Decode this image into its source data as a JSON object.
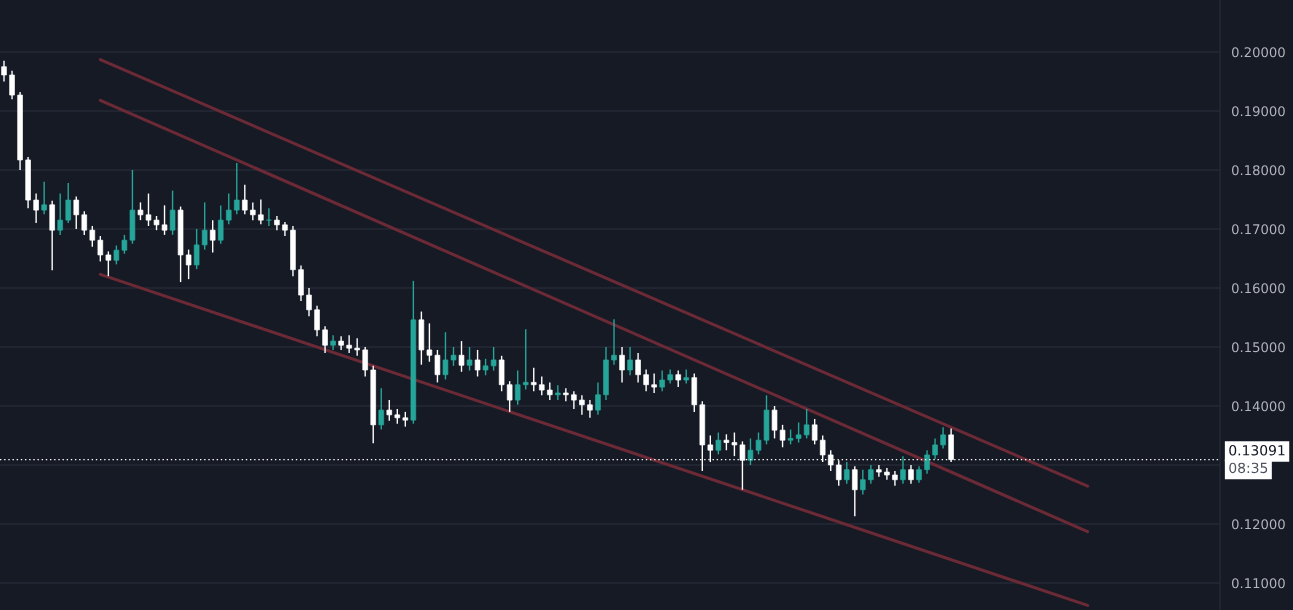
{
  "chart_data": {
    "type": "candlestick",
    "categories": [
      null,
      null,
      null,
      null,
      null,
      null,
      null,
      null,
      null,
      null,
      null,
      null,
      null,
      null,
      null,
      null,
      null,
      null,
      null,
      null,
      null,
      null,
      null,
      null,
      null,
      null,
      null,
      null,
      null,
      null,
      null,
      null,
      null,
      null,
      null,
      null,
      null,
      null,
      null,
      null,
      null,
      null,
      null,
      null,
      null,
      null,
      null,
      null,
      null,
      null,
      null,
      null,
      null,
      null,
      null,
      null,
      null,
      null,
      null,
      null,
      null,
      null,
      null,
      null,
      null,
      null,
      null,
      null,
      null,
      null,
      null,
      null,
      null,
      null,
      null,
      null,
      null,
      null,
      null,
      null,
      null,
      null,
      null,
      null,
      null,
      null,
      null,
      null,
      null,
      null,
      null,
      null,
      null,
      null,
      null,
      null,
      null,
      null,
      null,
      null,
      null,
      null,
      null,
      null,
      null,
      null,
      null,
      null,
      null,
      null,
      null,
      null,
      null,
      null,
      null,
      null,
      null,
      null,
      null,
      null,
      null,
      null,
      null,
      null,
      null,
      null,
      null,
      null,
      null,
      null,
      null,
      null,
      null,
      null,
      null,
      null,
      null,
      null,
      null,
      null,
      null,
      null,
      null,
      null,
      null,
      null,
      null,
      null,
      null,
      null,
      null,
      null
    ],
    "ohlc": [
      [
        0.1975,
        0.1985,
        0.195,
        0.1961
      ],
      [
        0.1961,
        0.1968,
        0.192,
        0.1927
      ],
      [
        0.1927,
        0.1932,
        0.18,
        0.1817
      ],
      [
        0.1817,
        0.1822,
        0.1735,
        0.1749
      ],
      [
        0.1749,
        0.176,
        0.171,
        0.1732
      ],
      [
        0.1732,
        0.178,
        0.1725,
        0.1741
      ],
      [
        0.1741,
        0.1748,
        0.163,
        0.1698
      ],
      [
        0.1698,
        0.176,
        0.169,
        0.1715
      ],
      [
        0.1715,
        0.1778,
        0.171,
        0.1749
      ],
      [
        0.1749,
        0.1755,
        0.17,
        0.1724
      ],
      [
        0.1724,
        0.173,
        0.169,
        0.1698
      ],
      [
        0.1698,
        0.1705,
        0.167,
        0.1681
      ],
      [
        0.1681,
        0.1688,
        0.1645,
        0.1656
      ],
      [
        0.1656,
        0.1662,
        0.162,
        0.1647
      ],
      [
        0.1647,
        0.1672,
        0.164,
        0.1664
      ],
      [
        0.1664,
        0.169,
        0.1658,
        0.1681
      ],
      [
        0.1681,
        0.18,
        0.1675,
        0.1732
      ],
      [
        0.1732,
        0.1745,
        0.1715,
        0.1724
      ],
      [
        0.1724,
        0.176,
        0.1705,
        0.1715
      ],
      [
        0.1715,
        0.1722,
        0.1698,
        0.1707
      ],
      [
        0.1707,
        0.174,
        0.169,
        0.1698
      ],
      [
        0.1698,
        0.1765,
        0.169,
        0.1732
      ],
      [
        0.1732,
        0.1738,
        0.161,
        0.1656
      ],
      [
        0.1656,
        0.1665,
        0.1615,
        0.1639
      ],
      [
        0.1639,
        0.17,
        0.1632,
        0.1673
      ],
      [
        0.1673,
        0.1745,
        0.1665,
        0.1698
      ],
      [
        0.1698,
        0.1715,
        0.166,
        0.1681
      ],
      [
        0.1681,
        0.174,
        0.1675,
        0.1715
      ],
      [
        0.1715,
        0.176,
        0.1708,
        0.1732
      ],
      [
        0.1732,
        0.1812,
        0.1725,
        0.1749
      ],
      [
        0.1749,
        0.1775,
        0.1725,
        0.1732
      ],
      [
        0.1732,
        0.1745,
        0.1715,
        0.1724
      ],
      [
        0.1724,
        0.175,
        0.1708,
        0.1715
      ],
      [
        0.1715,
        0.1735,
        0.1705,
        0.1715
      ],
      [
        0.1715,
        0.1722,
        0.1698,
        0.1707
      ],
      [
        0.1707,
        0.1712,
        0.1688,
        0.1698
      ],
      [
        0.1698,
        0.1705,
        0.162,
        0.1631
      ],
      [
        0.1631,
        0.1638,
        0.1578,
        0.1588
      ],
      [
        0.1588,
        0.16,
        0.1552,
        0.1563
      ],
      [
        0.1563,
        0.157,
        0.1518,
        0.1529
      ],
      [
        0.1529,
        0.1535,
        0.149,
        0.1503
      ],
      [
        0.1503,
        0.152,
        0.1495,
        0.151
      ],
      [
        0.151,
        0.1518,
        0.1495,
        0.1503
      ],
      [
        0.1503,
        0.152,
        0.149,
        0.1498
      ],
      [
        0.1498,
        0.1515,
        0.1485,
        0.1495
      ],
      [
        0.1495,
        0.15,
        0.145,
        0.1461
      ],
      [
        0.1461,
        0.1468,
        0.1337,
        0.1368
      ],
      [
        0.1368,
        0.143,
        0.136,
        0.1393
      ],
      [
        0.1393,
        0.141,
        0.1375,
        0.1385
      ],
      [
        0.1385,
        0.1395,
        0.137,
        0.138
      ],
      [
        0.138,
        0.139,
        0.1365,
        0.1376
      ],
      [
        0.1376,
        0.1612,
        0.137,
        0.1546
      ],
      [
        0.1546,
        0.156,
        0.147,
        0.1495
      ],
      [
        0.1495,
        0.154,
        0.1475,
        0.1486
      ],
      [
        0.1486,
        0.1495,
        0.144,
        0.1453
      ],
      [
        0.1453,
        0.1525,
        0.1445,
        0.1478
      ],
      [
        0.1478,
        0.15,
        0.1468,
        0.1486
      ],
      [
        0.1486,
        0.151,
        0.1458,
        0.1469
      ],
      [
        0.1469,
        0.15,
        0.146,
        0.1478
      ],
      [
        0.1478,
        0.1495,
        0.145,
        0.1461
      ],
      [
        0.1461,
        0.148,
        0.1452,
        0.1468
      ],
      [
        0.1468,
        0.15,
        0.146,
        0.1478
      ],
      [
        0.1478,
        0.1485,
        0.1425,
        0.1436
      ],
      [
        0.1436,
        0.1442,
        0.139,
        0.141
      ],
      [
        0.141,
        0.146,
        0.1402,
        0.1436
      ],
      [
        0.1436,
        0.153,
        0.1428,
        0.144
      ],
      [
        0.144,
        0.1465,
        0.1425,
        0.1436
      ],
      [
        0.1436,
        0.145,
        0.1418,
        0.1427
      ],
      [
        0.1427,
        0.144,
        0.141,
        0.1419
      ],
      [
        0.1419,
        0.1435,
        0.141,
        0.1422
      ],
      [
        0.1422,
        0.143,
        0.1408,
        0.1419
      ],
      [
        0.1419,
        0.1425,
        0.1395,
        0.141
      ],
      [
        0.141,
        0.1418,
        0.1385,
        0.1402
      ],
      [
        0.1402,
        0.141,
        0.138,
        0.1393
      ],
      [
        0.1393,
        0.144,
        0.1385,
        0.1419
      ],
      [
        0.1419,
        0.15,
        0.141,
        0.1478
      ],
      [
        0.1478,
        0.1547,
        0.147,
        0.1486
      ],
      [
        0.1486,
        0.15,
        0.144,
        0.1461
      ],
      [
        0.1461,
        0.15,
        0.1452,
        0.1478
      ],
      [
        0.1478,
        0.149,
        0.144,
        0.1453
      ],
      [
        0.1453,
        0.1462,
        0.1425,
        0.1436
      ],
      [
        0.1436,
        0.1455,
        0.1422,
        0.1432
      ],
      [
        0.1432,
        0.146,
        0.1425,
        0.1444
      ],
      [
        0.1444,
        0.1462,
        0.1438,
        0.1453
      ],
      [
        0.1453,
        0.146,
        0.1432,
        0.1444
      ],
      [
        0.1444,
        0.1462,
        0.1438,
        0.1448
      ],
      [
        0.1448,
        0.1455,
        0.139,
        0.1402
      ],
      [
        0.1402,
        0.1408,
        0.129,
        0.1334
      ],
      [
        0.1334,
        0.135,
        0.1305,
        0.1325
      ],
      [
        0.1325,
        0.1355,
        0.1318,
        0.1342
      ],
      [
        0.1342,
        0.1352,
        0.1325,
        0.1338
      ],
      [
        0.1338,
        0.1355,
        0.1315,
        0.1334
      ],
      [
        0.1334,
        0.134,
        0.1258,
        0.1308
      ],
      [
        0.1308,
        0.1345,
        0.13,
        0.1325
      ],
      [
        0.1325,
        0.1355,
        0.1318,
        0.1342
      ],
      [
        0.1342,
        0.1418,
        0.1335,
        0.1393
      ],
      [
        0.1393,
        0.14,
        0.1345,
        0.1359
      ],
      [
        0.1359,
        0.1368,
        0.133,
        0.1342
      ],
      [
        0.1342,
        0.136,
        0.1335,
        0.1345
      ],
      [
        0.1345,
        0.1372,
        0.1338,
        0.1351
      ],
      [
        0.1351,
        0.1395,
        0.1345,
        0.1368
      ],
      [
        0.1368,
        0.1378,
        0.1335,
        0.1342
      ],
      [
        0.1342,
        0.135,
        0.1305,
        0.1317
      ],
      [
        0.1317,
        0.1325,
        0.129,
        0.13
      ],
      [
        0.13,
        0.1308,
        0.1265,
        0.1275
      ],
      [
        0.1275,
        0.1305,
        0.1268,
        0.1292
      ],
      [
        0.1292,
        0.1298,
        0.1213,
        0.1258
      ],
      [
        0.1258,
        0.1292,
        0.125,
        0.1275
      ],
      [
        0.1275,
        0.13,
        0.1268,
        0.1292
      ],
      [
        0.1292,
        0.13,
        0.128,
        0.1288
      ],
      [
        0.1288,
        0.1295,
        0.1275,
        0.1283
      ],
      [
        0.1283,
        0.129,
        0.1265,
        0.1275
      ],
      [
        0.1275,
        0.1315,
        0.1268,
        0.1292
      ],
      [
        0.1292,
        0.13,
        0.1268,
        0.1275
      ],
      [
        0.1275,
        0.1298,
        0.127,
        0.1292
      ],
      [
        0.1292,
        0.1325,
        0.1285,
        0.1317
      ],
      [
        0.1317,
        0.1345,
        0.131,
        0.1334
      ],
      [
        0.1334,
        0.1364,
        0.1328,
        0.1351
      ],
      [
        0.1351,
        0.1362,
        0.1305,
        0.13091
      ],
      null,
      null,
      null,
      null,
      null,
      null,
      null,
      null,
      null,
      null,
      null,
      null,
      null,
      null,
      null,
      null,
      null,
      null,
      null,
      null,
      null,
      null,
      null,
      null,
      null,
      null,
      null,
      null,
      null,
      null,
      null,
      null,
      null
    ],
    "colors": [
      "#ffffff",
      "#ffffff",
      "#ffffff",
      "#ffffff",
      "#ffffff",
      "#26a69a",
      "#ffffff",
      "#26a69a",
      "#26a69a",
      "#ffffff",
      "#ffffff",
      "#ffffff",
      "#ffffff",
      "#ffffff",
      "#26a69a",
      "#26a69a",
      "#26a69a",
      "#ffffff",
      "#ffffff",
      "#ffffff",
      "#ffffff",
      "#26a69a",
      "#ffffff",
      "#ffffff",
      "#26a69a",
      "#26a69a",
      "#ffffff",
      "#26a69a",
      "#26a69a",
      "#26a69a",
      "#ffffff",
      "#ffffff",
      "#ffffff",
      "#26a69a",
      "#ffffff",
      "#ffffff",
      "#ffffff",
      "#ffffff",
      "#ffffff",
      "#ffffff",
      "#ffffff",
      "#26a69a",
      "#ffffff",
      "#ffffff",
      "#ffffff",
      "#ffffff",
      "#ffffff",
      "#26a69a",
      "#ffffff",
      "#ffffff",
      "#ffffff",
      "#26a69a",
      "#ffffff",
      "#ffffff",
      "#ffffff",
      "#26a69a",
      "#26a69a",
      "#ffffff",
      "#26a69a",
      "#ffffff",
      "#26a69a",
      "#26a69a",
      "#ffffff",
      "#ffffff",
      "#26a69a",
      "#26a69a",
      "#ffffff",
      "#ffffff",
      "#ffffff",
      "#26a69a",
      "#ffffff",
      "#ffffff",
      "#ffffff",
      "#ffffff",
      "#26a69a",
      "#26a69a",
      "#26a69a",
      "#ffffff",
      "#26a69a",
      "#ffffff",
      "#ffffff",
      "#ffffff",
      "#26a69a",
      "#26a69a",
      "#ffffff",
      "#26a69a",
      "#ffffff",
      "#ffffff",
      "#ffffff",
      "#26a69a",
      "#ffffff",
      "#ffffff",
      "#ffffff",
      "#26a69a",
      "#26a69a",
      "#26a69a",
      "#ffffff",
      "#ffffff",
      "#26a69a",
      "#26a69a",
      "#26a69a",
      "#ffffff",
      "#ffffff",
      "#ffffff",
      "#ffffff",
      "#26a69a",
      "#ffffff",
      "#26a69a",
      "#26a69a",
      "#ffffff",
      "#ffffff",
      "#ffffff",
      "#26a69a",
      "#ffffff",
      "#26a69a",
      "#26a69a",
      "#26a69a",
      "#26a69a",
      "#ffffff",
      null,
      null,
      null,
      null,
      null,
      null,
      null,
      null,
      null,
      null,
      null,
      null,
      null,
      null,
      null,
      null,
      null,
      null,
      null,
      null,
      null,
      null,
      null,
      null,
      null,
      null,
      null,
      null,
      null,
      null,
      null,
      null,
      null
    ],
    "series": [
      {
        "type": "line",
        "color": "#6b2a35",
        "values": [
          null,
          null,
          null,
          null,
          null,
          null,
          null,
          null,
          null,
          null,
          null,
          null,
          0.1987,
          null,
          null,
          null,
          null,
          null,
          null,
          null,
          null,
          null,
          null,
          null,
          null,
          null,
          null,
          null,
          null,
          null,
          null,
          null,
          null,
          null,
          null,
          null,
          null,
          null,
          null,
          null,
          null,
          null,
          null,
          null,
          null,
          null,
          null,
          null,
          null,
          null,
          null,
          null,
          null,
          null,
          null,
          null,
          null,
          null,
          null,
          null,
          null,
          null,
          null,
          null,
          null,
          null,
          null,
          null,
          null,
          null,
          null,
          null,
          null,
          null,
          null,
          null,
          null,
          null,
          null,
          null,
          null,
          null,
          null,
          null,
          null,
          null,
          null,
          null,
          null,
          null,
          null,
          null,
          null,
          null,
          null,
          null,
          null,
          null,
          null,
          null,
          null,
          null,
          null,
          null,
          null,
          null,
          null,
          null,
          null,
          null,
          null,
          null,
          null,
          null,
          null,
          null,
          null,
          null,
          null,
          null,
          null,
          null,
          null,
          null,
          null,
          null,
          null,
          null,
          null,
          null,
          null,
          null,
          null,
          null,
          null,
          0.1264,
          null,
          null,
          null,
          null,
          null,
          null,
          null,
          null,
          null,
          null,
          null,
          null,
          null,
          null,
          null,
          null
        ]
      },
      {
        "type": "line",
        "color": "#6b2a35",
        "values": [
          null,
          null,
          null,
          null,
          null,
          null,
          null,
          null,
          null,
          null,
          null,
          null,
          0.1918,
          null,
          null,
          null,
          null,
          null,
          null,
          null,
          null,
          null,
          null,
          null,
          null,
          null,
          null,
          null,
          null,
          null,
          null,
          null,
          null,
          null,
          null,
          null,
          null,
          null,
          null,
          null,
          null,
          null,
          null,
          null,
          null,
          null,
          null,
          null,
          null,
          null,
          null,
          null,
          null,
          null,
          null,
          null,
          null,
          null,
          null,
          null,
          null,
          null,
          null,
          null,
          null,
          null,
          null,
          null,
          null,
          null,
          null,
          null,
          null,
          null,
          null,
          null,
          null,
          null,
          null,
          null,
          null,
          null,
          null,
          null,
          null,
          null,
          null,
          null,
          null,
          null,
          null,
          null,
          null,
          null,
          null,
          null,
          null,
          null,
          null,
          null,
          null,
          null,
          null,
          null,
          null,
          null,
          null,
          null,
          null,
          null,
          null,
          null,
          null,
          null,
          null,
          null,
          null,
          null,
          null,
          null,
          null,
          null,
          null,
          null,
          null,
          null,
          null,
          null,
          null,
          null,
          null,
          null,
          null,
          null,
          null,
          0.1187,
          null,
          null,
          null,
          null,
          null,
          null,
          null,
          null,
          null,
          null,
          null,
          null,
          null,
          null,
          null,
          null
        ]
      },
      {
        "type": "line",
        "color": "#6b2a35",
        "values": [
          null,
          null,
          null,
          null,
          null,
          null,
          null,
          null,
          null,
          null,
          null,
          null,
          0.1623,
          null,
          null,
          null,
          null,
          null,
          null,
          null,
          null,
          null,
          null,
          null,
          null,
          null,
          null,
          null,
          null,
          null,
          null,
          null,
          null,
          null,
          null,
          null,
          null,
          null,
          null,
          null,
          null,
          null,
          null,
          null,
          null,
          null,
          null,
          null,
          null,
          null,
          null,
          null,
          null,
          null,
          null,
          null,
          null,
          null,
          null,
          null,
          null,
          null,
          null,
          null,
          null,
          null,
          null,
          null,
          null,
          null,
          null,
          null,
          null,
          null,
          null,
          null,
          null,
          null,
          null,
          null,
          null,
          null,
          null,
          null,
          null,
          null,
          null,
          null,
          null,
          null,
          null,
          null,
          null,
          null,
          null,
          null,
          null,
          null,
          null,
          null,
          null,
          null,
          null,
          null,
          null,
          null,
          null,
          null,
          null,
          null,
          null,
          null,
          null,
          null,
          null,
          null,
          null,
          null,
          null,
          null,
          null,
          null,
          null,
          null,
          null,
          null,
          null,
          null,
          null,
          null,
          null,
          null,
          null,
          null,
          null,
          0.1062,
          null,
          null,
          null,
          null,
          null,
          null,
          null,
          null,
          null,
          null,
          null,
          null,
          null,
          null,
          null,
          null
        ]
      }
    ],
    "ylim": [
      0.10542,
      0.20881
    ],
    "yticks": [
      {
        "value": 0.11,
        "label": "0.11000"
      },
      {
        "value": 0.12,
        "label": "0.12000"
      },
      {
        "value": 0.13,
        "label": null
      },
      {
        "value": 0.14,
        "label": "0.14000"
      },
      {
        "value": 0.15,
        "label": "0.15000"
      },
      {
        "value": 0.16,
        "label": "0.16000"
      },
      {
        "value": 0.17,
        "label": "0.17000"
      },
      {
        "value": 0.18,
        "label": "0.18000"
      },
      {
        "value": 0.19,
        "label": "0.19000"
      },
      {
        "value": 0.2,
        "label": "0.20000"
      }
    ],
    "ref_lines": [
      {
        "axis": "y",
        "value": 0.13091,
        "label": "0.13091",
        "color": "#ffffff",
        "line_style": "dotted"
      }
    ],
    "annotations": [
      "08:35"
    ],
    "grid": "y",
    "tick_labels": "y"
  }
}
